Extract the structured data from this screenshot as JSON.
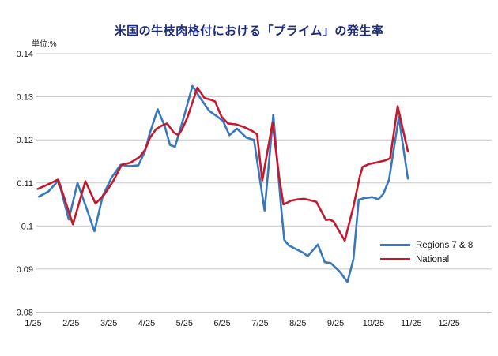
{
  "chart": {
    "title": "米国の牛枝肉格付における「プライム」の発生率",
    "unit_label": "単位:%"
  },
  "legend": {
    "items": [
      {
        "label": "Regions 7 & 8",
        "color": "#3a78bd"
      },
      {
        "label": "National",
        "color": "#c5182c"
      }
    ]
  },
  "chart_data": {
    "type": "line",
    "title": "米国の牛枝肉格付における「プライム」の発生率",
    "unit_label": "単位:%",
    "xlabel": "",
    "ylabel": "",
    "grid": "horizontal",
    "legend_position": "right-middle",
    "ylim": [
      0.08,
      0.14
    ],
    "y_ticks": [
      "0.14",
      "0.13",
      "0.12",
      "0.11",
      "0.1",
      "0.09",
      "0.08"
    ],
    "x_ticks": [
      "1/25",
      "2/25",
      "3/25",
      "4/25",
      "5/25",
      "6/25",
      "7/25",
      "8/25",
      "9/25",
      "10/25",
      "11/25",
      "12/25"
    ],
    "x_unit": "month/year, weekly points (x = month position on axis)",
    "series": [
      {
        "name": "Regions 7 & 8",
        "color": "#3a78bd",
        "points": [
          [
            1.15,
            0.1068
          ],
          [
            1.4,
            0.108
          ],
          [
            1.67,
            0.1106
          ],
          [
            1.94,
            0.1015
          ],
          [
            2.17,
            0.11
          ],
          [
            2.39,
            0.1046
          ],
          [
            2.62,
            0.0988
          ],
          [
            2.84,
            0.107
          ],
          [
            3.07,
            0.1112
          ],
          [
            3.31,
            0.1142
          ],
          [
            3.55,
            0.1139
          ],
          [
            3.78,
            0.1141
          ],
          [
            3.95,
            0.1172
          ],
          [
            4.08,
            0.1214
          ],
          [
            4.29,
            0.1271
          ],
          [
            4.48,
            0.1232
          ],
          [
            4.62,
            0.1188
          ],
          [
            4.75,
            0.1184
          ],
          [
            4.98,
            0.1252
          ],
          [
            5.21,
            0.1325
          ],
          [
            5.45,
            0.1293
          ],
          [
            5.66,
            0.1267
          ],
          [
            5.87,
            0.1254
          ],
          [
            6.02,
            0.1244
          ],
          [
            6.19,
            0.1211
          ],
          [
            6.39,
            0.1226
          ],
          [
            6.64,
            0.1205
          ],
          [
            6.84,
            0.12
          ],
          [
            7.12,
            0.1036
          ],
          [
            7.35,
            0.1258
          ],
          [
            7.56,
            0.104
          ],
          [
            7.64,
            0.0968
          ],
          [
            7.76,
            0.0955
          ],
          [
            7.96,
            0.0946
          ],
          [
            8.14,
            0.0938
          ],
          [
            8.26,
            0.093
          ],
          [
            8.53,
            0.0957
          ],
          [
            8.71,
            0.0916
          ],
          [
            8.87,
            0.0914
          ],
          [
            9.11,
            0.0894
          ],
          [
            9.31,
            0.087
          ],
          [
            9.47,
            0.0923
          ],
          [
            9.61,
            0.1061
          ],
          [
            9.77,
            0.1065
          ],
          [
            9.97,
            0.1067
          ],
          [
            10.13,
            0.1062
          ],
          [
            10.26,
            0.1074
          ],
          [
            10.41,
            0.1107
          ],
          [
            10.67,
            0.1253
          ],
          [
            10.91,
            0.111
          ]
        ]
      },
      {
        "name": "National",
        "color": "#c5182c",
        "points": [
          [
            1.12,
            0.1086
          ],
          [
            1.4,
            0.1097
          ],
          [
            1.66,
            0.1108
          ],
          [
            2.05,
            0.1004
          ],
          [
            2.38,
            0.1104
          ],
          [
            2.65,
            0.1052
          ],
          [
            2.88,
            0.1073
          ],
          [
            3.12,
            0.1105
          ],
          [
            3.34,
            0.1142
          ],
          [
            3.57,
            0.1147
          ],
          [
            3.81,
            0.116
          ],
          [
            3.96,
            0.1177
          ],
          [
            4.09,
            0.1205
          ],
          [
            4.24,
            0.1224
          ],
          [
            4.38,
            0.1232
          ],
          [
            4.54,
            0.1238
          ],
          [
            4.72,
            0.1217
          ],
          [
            4.84,
            0.1211
          ],
          [
            4.94,
            0.1225
          ],
          [
            5.08,
            0.1252
          ],
          [
            5.34,
            0.1321
          ],
          [
            5.53,
            0.1297
          ],
          [
            5.7,
            0.1293
          ],
          [
            5.81,
            0.1289
          ],
          [
            5.98,
            0.1254
          ],
          [
            6.15,
            0.1238
          ],
          [
            6.36,
            0.1236
          ],
          [
            6.57,
            0.123
          ],
          [
            6.78,
            0.1221
          ],
          [
            6.92,
            0.1213
          ],
          [
            7.06,
            0.1106
          ],
          [
            7.33,
            0.124
          ],
          [
            7.51,
            0.111
          ],
          [
            7.62,
            0.105
          ],
          [
            7.83,
            0.1059
          ],
          [
            8.0,
            0.1062
          ],
          [
            8.17,
            0.1063
          ],
          [
            8.32,
            0.106
          ],
          [
            8.49,
            0.1056
          ],
          [
            8.63,
            0.1033
          ],
          [
            8.74,
            0.1014
          ],
          [
            8.84,
            0.1015
          ],
          [
            8.95,
            0.101
          ],
          [
            9.24,
            0.0966
          ],
          [
            9.47,
            0.1045
          ],
          [
            9.64,
            0.1116
          ],
          [
            9.71,
            0.1137
          ],
          [
            9.89,
            0.1144
          ],
          [
            10.1,
            0.1148
          ],
          [
            10.3,
            0.1152
          ],
          [
            10.44,
            0.1157
          ],
          [
            10.64,
            0.1278
          ],
          [
            10.91,
            0.1173
          ]
        ]
      }
    ]
  }
}
